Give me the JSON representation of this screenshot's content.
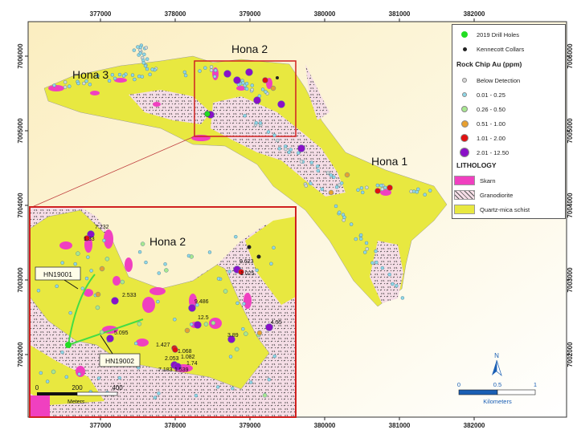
{
  "map": {
    "x_ticks": [
      "377000",
      "378000",
      "379000",
      "380000",
      "381000",
      "382000"
    ],
    "y_ticks": [
      "7006000",
      "7005000",
      "7004000",
      "7003000",
      "7002000"
    ],
    "area_labels": [
      "Hona 3",
      "Hona 2",
      "Hona 1"
    ],
    "inset": {
      "title": "Hona 2",
      "drill_hole_labels": [
        "HN19001",
        "HN19002"
      ],
      "assay_labels": [
        "7.232",
        "1.33",
        "2.533",
        "5.095",
        "1.427",
        "1.068",
        "2.053",
        "1.082",
        "1.74",
        "7.183",
        "1.539",
        "9.486",
        "12.5",
        "3.89",
        "4.55",
        "9.623",
        "1.025"
      ],
      "scale": {
        "ticks": [
          "0",
          "200",
          "400"
        ],
        "unit": "Meters"
      }
    },
    "scale": {
      "ticks": [
        "0",
        "0.5",
        "1"
      ],
      "unit": "Kilometers"
    },
    "north_arrow": "N"
  },
  "legend": {
    "items": [
      {
        "label": "2019 Drill Holes",
        "color": "#22dd22"
      },
      {
        "label": "Kennecott Collars",
        "color": "#222222"
      }
    ],
    "rock_chip_title": "Rock Chip Au (ppm)",
    "rock_chip": [
      {
        "label": "Below Detection",
        "color": "#d8d8d8"
      },
      {
        "label": "0.01 - 0.25",
        "color": "#8fd8e8"
      },
      {
        "label": "0.26 - 0.50",
        "color": "#a8e890"
      },
      {
        "label": "0.51 - 1.00",
        "color": "#e8a030"
      },
      {
        "label": "1.01 - 2.00",
        "color": "#e01010"
      },
      {
        "label": "2.01 - 12.50",
        "color": "#8a10c8"
      }
    ],
    "lithology_title": "LITHOLOGY",
    "lithology": [
      {
        "label": "Skarn",
        "color": "#f040c0"
      },
      {
        "label": "Granodiorite",
        "color": "#f5dde6"
      },
      {
        "label": "Quartz-mica schist",
        "color": "#e8e840"
      }
    ]
  }
}
